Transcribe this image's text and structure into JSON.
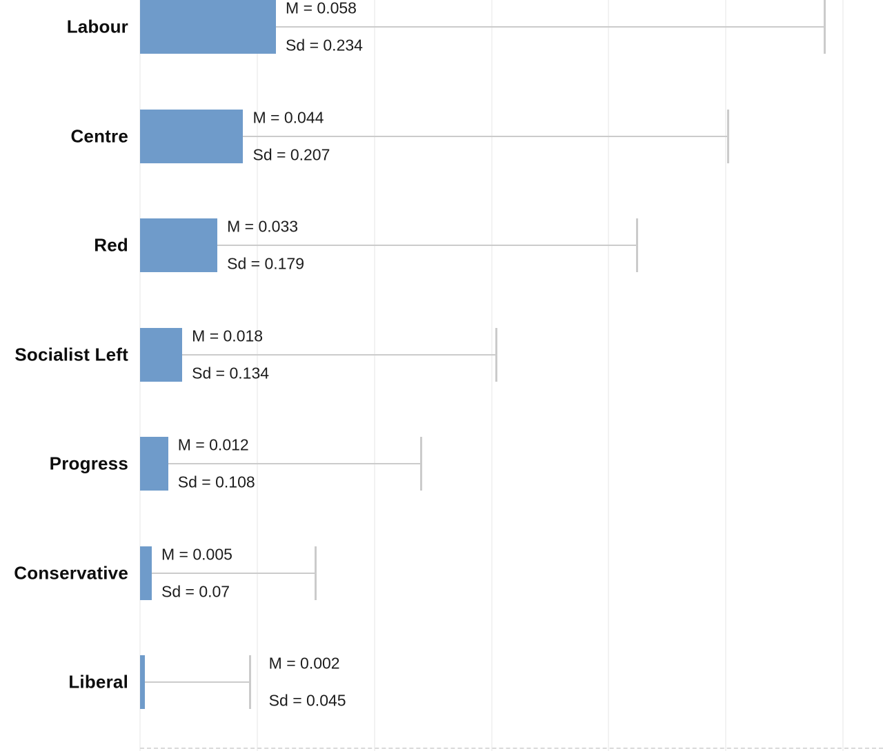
{
  "chart_data": {
    "type": "bar",
    "orientation": "horizontal",
    "title": "",
    "xlabel": "",
    "ylabel": "",
    "legend": "none",
    "grid": true,
    "xlim": [
      0,
      0.317
    ],
    "x_gridline_step": 0.05,
    "categories": [
      "Labour",
      "Centre",
      "Red",
      "Socialist Left",
      "Progress",
      "Conservative",
      "Liberal"
    ],
    "series": [
      {
        "name": "Mean",
        "values": [
          0.058,
          0.044,
          0.033,
          0.018,
          0.012,
          0.005,
          0.002
        ]
      },
      {
        "name": "Sd",
        "values": [
          0.234,
          0.207,
          0.179,
          0.134,
          0.108,
          0.07,
          0.045
        ]
      }
    ],
    "rows": [
      {
        "category": "Labour",
        "mean": 0.058,
        "sd": 0.234,
        "mean_label": "M = 0.058",
        "sd_label": "Sd = 0.234",
        "label_anchor": "bar"
      },
      {
        "category": "Centre",
        "mean": 0.044,
        "sd": 0.207,
        "mean_label": "M = 0.044",
        "sd_label": "Sd = 0.207",
        "label_anchor": "bar"
      },
      {
        "category": "Red",
        "mean": 0.033,
        "sd": 0.179,
        "mean_label": "M = 0.033",
        "sd_label": "Sd = 0.179",
        "label_anchor": "bar"
      },
      {
        "category": "Socialist Left",
        "mean": 0.018,
        "sd": 0.134,
        "mean_label": "M = 0.018",
        "sd_label": "Sd = 0.134",
        "label_anchor": "bar"
      },
      {
        "category": "Progress",
        "mean": 0.012,
        "sd": 0.108,
        "mean_label": "M = 0.012",
        "sd_label": "Sd = 0.108",
        "label_anchor": "bar"
      },
      {
        "category": "Conservative",
        "mean": 0.005,
        "sd": 0.07,
        "mean_label": "M = 0.005",
        "sd_label": "Sd = 0.07",
        "label_anchor": "bar"
      },
      {
        "category": "Liberal",
        "mean": 0.002,
        "sd": 0.045,
        "mean_label": "M = 0.002",
        "sd_label": "Sd = 0.045",
        "label_anchor": "whisker"
      }
    ],
    "bar_color": "#6f9bca",
    "whisker_color": "#cbcbcb",
    "gridline_color": "#f2f2f2",
    "axis_color": "#d9d9d9",
    "background": "#ffffff"
  }
}
